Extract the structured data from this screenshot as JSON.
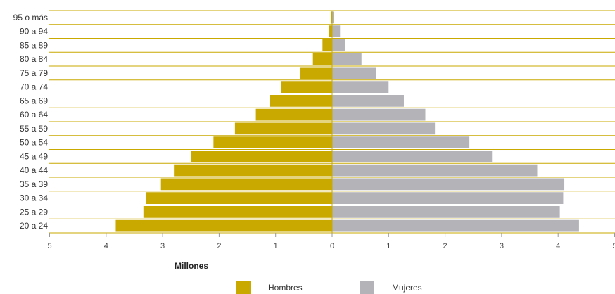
{
  "chart_data": {
    "type": "bar",
    "orientation": "horizontal",
    "categories": [
      "95 o más",
      "90 a 94",
      "85 a 89",
      "80 a 84",
      "75 a 79",
      "70 a 74",
      "65 a 69",
      "60 a 64",
      "55 a 59",
      "50 a 54",
      "45 a 49",
      "40 a 44",
      "35 a 39",
      "30 a 34",
      "25 a 29",
      "20 a 24"
    ],
    "series": [
      {
        "name": "Hombres",
        "color": "#c9a800",
        "values": [
          0.02,
          0.05,
          0.17,
          0.34,
          0.56,
          0.9,
          1.1,
          1.35,
          1.72,
          2.1,
          2.5,
          2.8,
          3.03,
          3.29,
          3.34,
          3.83
        ]
      },
      {
        "name": "Mujeres",
        "color": "#b3b3b8",
        "values": [
          0.03,
          0.14,
          0.23,
          0.52,
          0.78,
          1.0,
          1.27,
          1.65,
          1.82,
          2.43,
          2.83,
          3.63,
          4.11,
          4.09,
          4.03,
          4.37
        ]
      }
    ],
    "xlabel": "Millones",
    "xticks": [
      "5",
      "4",
      "3",
      "2",
      "1",
      "0",
      "1",
      "2",
      "3",
      "4",
      "5"
    ],
    "xlim": [
      -5,
      5
    ],
    "legend_position": "bottom-center",
    "grid_color": "#c9a800"
  }
}
